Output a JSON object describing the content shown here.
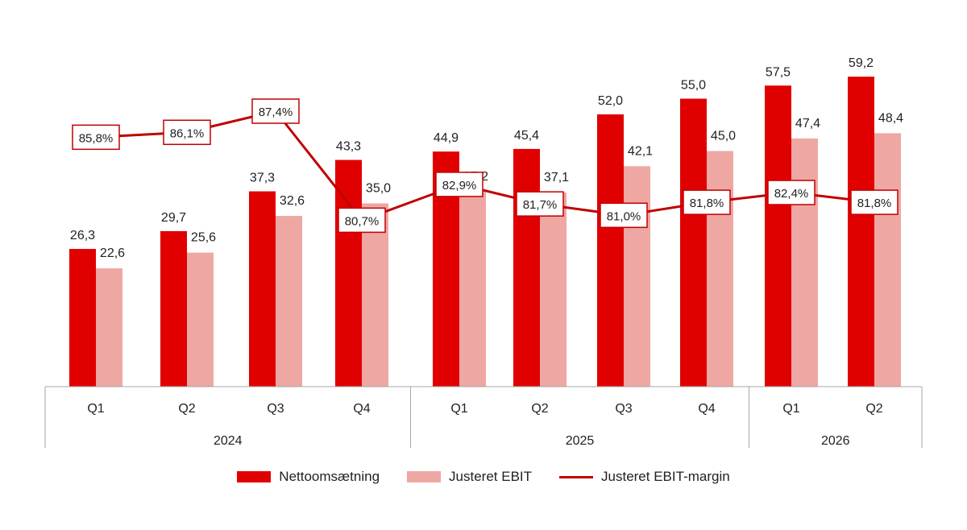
{
  "chart_data": {
    "type": "bar",
    "categories": [
      "Q1",
      "Q2",
      "Q3",
      "Q4",
      "Q1",
      "Q2",
      "Q3",
      "Q4",
      "Q1",
      "Q2"
    ],
    "groups": [
      {
        "label": "2024",
        "count": 4
      },
      {
        "label": "2025",
        "count": 4
      },
      {
        "label": "2026",
        "count": 2
      }
    ],
    "series": [
      {
        "name": "Nettoomsætning",
        "kind": "bar",
        "color": "#e10000",
        "values": [
          26.3,
          29.7,
          37.3,
          43.3,
          44.9,
          45.4,
          52.0,
          55.0,
          57.5,
          59.2
        ],
        "labels": [
          "26,3",
          "29,7",
          "37,3",
          "43,3",
          "44,9",
          "45,4",
          "52,0",
          "55,0",
          "57,5",
          "59,2"
        ]
      },
      {
        "name": "Justeret EBIT",
        "kind": "bar",
        "color": "#eea7a3",
        "values": [
          22.6,
          25.6,
          32.6,
          35.0,
          37.2,
          37.1,
          42.1,
          45.0,
          47.4,
          48.4
        ],
        "labels": [
          "22,6",
          "25,6",
          "32,6",
          "35,0",
          "37,2",
          "37,1",
          "42,1",
          "45,0",
          "47,4",
          "48,4"
        ]
      },
      {
        "name": "Justeret EBIT-margin",
        "kind": "line",
        "color": "#c00000",
        "values": [
          85.8,
          86.1,
          87.4,
          80.7,
          82.9,
          81.7,
          81.0,
          81.8,
          82.4,
          81.8
        ],
        "labels": [
          "85,8%",
          "86,1%",
          "87,4%",
          "80,7%",
          "82,9%",
          "81,7%",
          "81,0%",
          "81,8%",
          "82,4%",
          "81,8%"
        ]
      }
    ],
    "ylim": [
      0,
      70
    ],
    "y2lim": [
      70,
      95
    ],
    "grid": false,
    "legend": "bottom"
  }
}
